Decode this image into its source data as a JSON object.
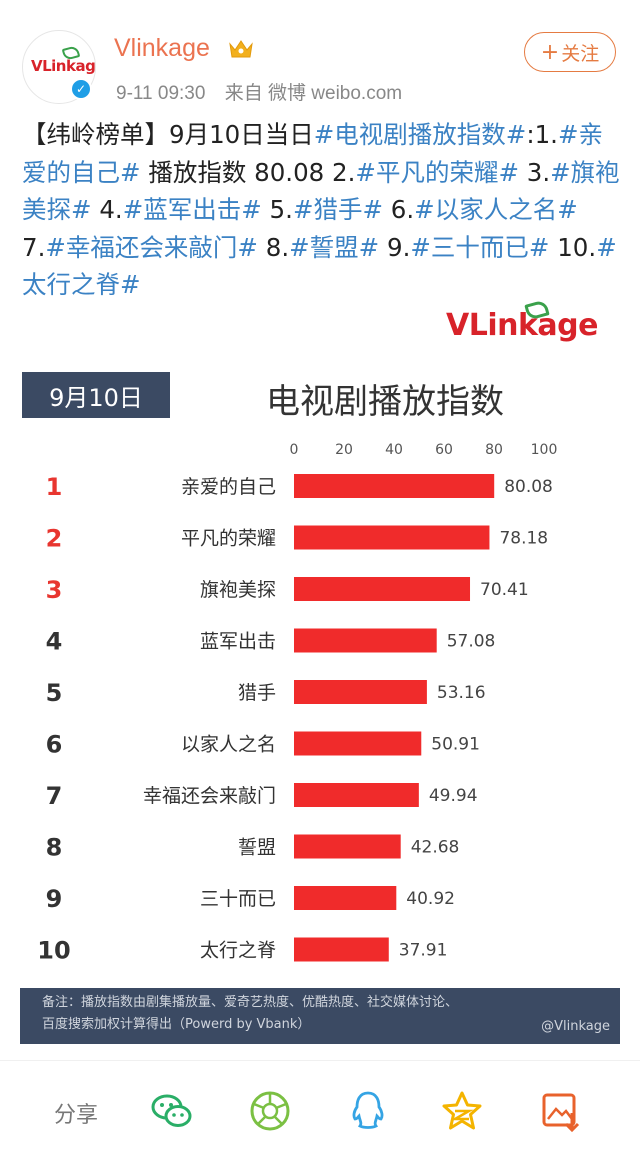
{
  "post": {
    "username": "Vlinkage",
    "timestamp": "9-11 09:30",
    "source": "来自 微博 weibo.com",
    "follow_label": "关注",
    "follow_plus": "+",
    "avatar_logo": "VLinkage",
    "verified_mark": "✓",
    "text_segments": [
      {
        "text": "【纬岭榜单】9月10日当日",
        "tag": false
      },
      {
        "text": "#电视剧播放指数#",
        "tag": true
      },
      {
        "text": ":1.",
        "tag": false
      },
      {
        "text": "#亲爱的自己#",
        "tag": true
      },
      {
        "text": " 播放指数 80.08 2.",
        "tag": false
      },
      {
        "text": "#平凡的荣耀#",
        "tag": true
      },
      {
        "text": " 3.",
        "tag": false
      },
      {
        "text": "#旗袍美探#",
        "tag": true
      },
      {
        "text": " 4.",
        "tag": false
      },
      {
        "text": "#蓝军出击#",
        "tag": true
      },
      {
        "text": " 5.",
        "tag": false
      },
      {
        "text": "#猎手#",
        "tag": true
      },
      {
        "text": " 6.",
        "tag": false
      },
      {
        "text": "#以家人之名#",
        "tag": true
      },
      {
        "text": " 7.",
        "tag": false
      },
      {
        "text": "#幸福还会来敲门#",
        "tag": true
      },
      {
        "text": " 8.",
        "tag": false
      },
      {
        "text": "#誓盟#",
        "tag": true
      },
      {
        "text": " 9.",
        "tag": false
      },
      {
        "text": "#三十而已#",
        "tag": true
      },
      {
        "text": " 10.",
        "tag": false
      },
      {
        "text": "#太行之脊#",
        "tag": true
      }
    ]
  },
  "infographic": {
    "brand": "VLinkage",
    "date_label": "9月10日",
    "note_line1": "备注：播放指数由剧集播放量、爱奇艺热度、优酷热度、社交媒体讨论、",
    "note_line2": "百度搜索加权计算得出（Powerd by Vbank）",
    "weibo_handle": "@Vlinkage"
  },
  "chart_data": {
    "type": "bar",
    "orientation": "horizontal",
    "title": "电视剧播放指数",
    "ranks": [
      "1",
      "2",
      "3",
      "4",
      "5",
      "6",
      "7",
      "8",
      "9",
      "10"
    ],
    "categories": [
      "亲爱的自己",
      "平凡的荣耀",
      "旗袍美探",
      "蓝军出击",
      "猎手",
      "以家人之名",
      "幸福还会来敲门",
      "誓盟",
      "三十而已",
      "太行之脊"
    ],
    "values": [
      80.08,
      78.18,
      70.41,
      57.08,
      53.16,
      50.91,
      49.94,
      42.68,
      40.92,
      37.91
    ],
    "xlim": [
      0,
      100
    ],
    "xticks": [
      "0",
      "20",
      "40",
      "60",
      "80",
      "100"
    ],
    "bar_color": "#f02b2b",
    "rank_colors": [
      "#e8352f",
      "#e8352f",
      "#e8352f",
      "#333333",
      "#333333",
      "#333333",
      "#333333",
      "#333333",
      "#333333",
      "#333333"
    ],
    "grid": false
  },
  "share_bar": {
    "label": "分享",
    "icons": [
      "wechat-icon",
      "moments-icon",
      "qq-icon",
      "qzone-icon",
      "save-image-icon"
    ]
  },
  "colors": {
    "accent": "#eb7350",
    "tag_blue": "#3b82c4",
    "dark_panel": "#3b4a63"
  }
}
